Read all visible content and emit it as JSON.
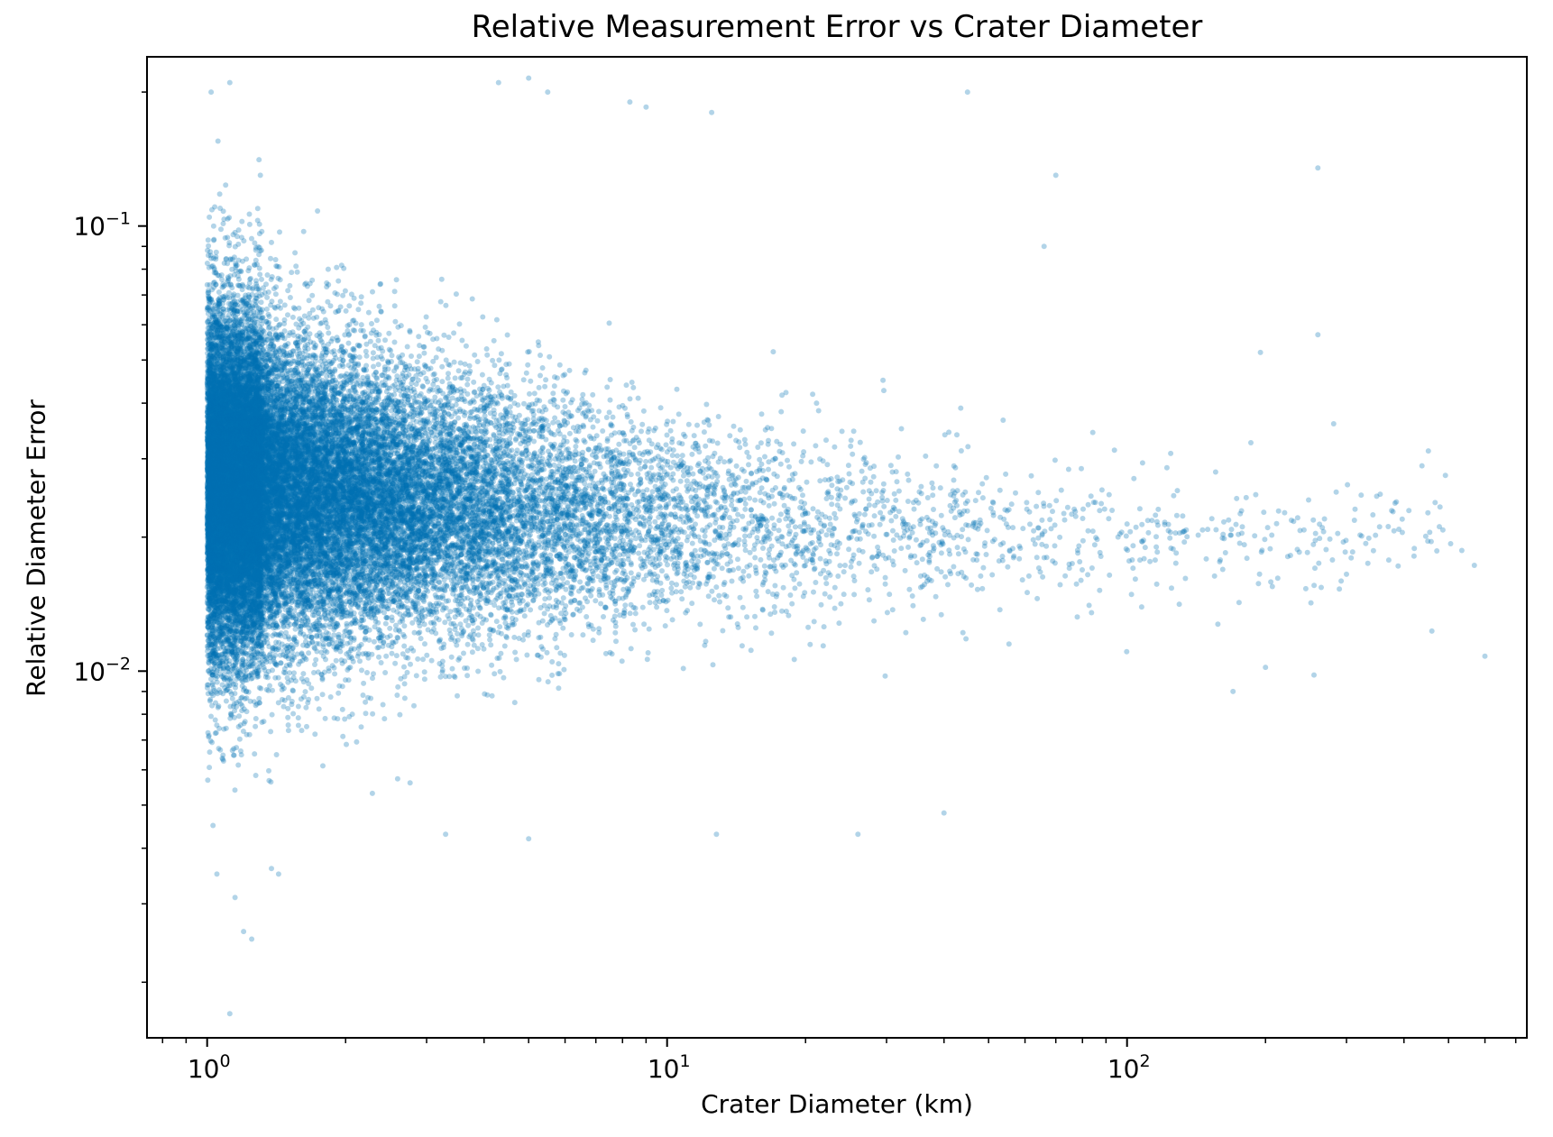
{
  "chart_data": {
    "type": "scatter",
    "title": "Relative Measurement Error vs Crater Diameter",
    "xlabel": "Crater Diameter (km)",
    "ylabel": "Relative Diameter Error",
    "xscale": "log",
    "yscale": "log",
    "xlim": [
      0.74,
      740
    ],
    "ylim": [
      0.0015,
      0.24
    ],
    "x_ticks": [
      {
        "value": 1,
        "base": "10",
        "exp": "0"
      },
      {
        "value": 10,
        "base": "10",
        "exp": "1"
      },
      {
        "value": 100,
        "base": "10",
        "exp": "2"
      }
    ],
    "y_ticks": [
      {
        "value": 0.01,
        "base": "10",
        "exp": "−2"
      },
      {
        "value": 0.1,
        "base": "10",
        "exp": "−1"
      }
    ],
    "grid": false,
    "legend": "none",
    "marker_color": "#0072b2",
    "marker_alpha": 0.3,
    "series": [
      {
        "distribution": "dense cloud concentrated at small diameters; spread narrows with increasing diameter",
        "x_min": 1.0,
        "x_max": 600,
        "y_median": 0.022,
        "bulk_range_at_1km": [
          0.011,
          0.12
        ],
        "bulk_range_at_10km": [
          0.011,
          0.06
        ],
        "bulk_range_at_100km": [
          0.015,
          0.04
        ],
        "outliers": [
          {
            "x": 1.12,
            "y": 0.0017
          },
          {
            "x": 1.25,
            "y": 0.0025
          },
          {
            "x": 1.2,
            "y": 0.0026
          },
          {
            "x": 1.15,
            "y": 0.0031
          },
          {
            "x": 1.38,
            "y": 0.0036
          },
          {
            "x": 1.43,
            "y": 0.0035
          },
          {
            "x": 1.05,
            "y": 0.0035
          },
          {
            "x": 1.12,
            "y": 0.21
          },
          {
            "x": 1.02,
            "y": 0.2
          },
          {
            "x": 4.3,
            "y": 0.21
          },
          {
            "x": 5.0,
            "y": 0.215
          },
          {
            "x": 5.5,
            "y": 0.2
          },
          {
            "x": 8.3,
            "y": 0.19
          },
          {
            "x": 9.0,
            "y": 0.185
          },
          {
            "x": 12.5,
            "y": 0.18
          },
          {
            "x": 45,
            "y": 0.2
          },
          {
            "x": 70,
            "y": 0.13
          },
          {
            "x": 66,
            "y": 0.09
          },
          {
            "x": 260,
            "y": 0.135
          },
          {
            "x": 260,
            "y": 0.057
          },
          {
            "x": 195,
            "y": 0.052
          },
          {
            "x": 255,
            "y": 0.0098
          },
          {
            "x": 170,
            "y": 0.009
          },
          {
            "x": 200,
            "y": 0.0102
          },
          {
            "x": 600,
            "y": 0.0108
          },
          {
            "x": 460,
            "y": 0.0123
          },
          {
            "x": 455,
            "y": 0.0205
          },
          {
            "x": 385,
            "y": 0.024
          },
          {
            "x": 300,
            "y": 0.0165
          },
          {
            "x": 40,
            "y": 0.0048
          },
          {
            "x": 26,
            "y": 0.0043
          },
          {
            "x": 12.8,
            "y": 0.0043
          },
          {
            "x": 5.0,
            "y": 0.0042
          },
          {
            "x": 3.3,
            "y": 0.0043
          },
          {
            "x": 1.03,
            "y": 0.0045
          }
        ]
      }
    ]
  }
}
